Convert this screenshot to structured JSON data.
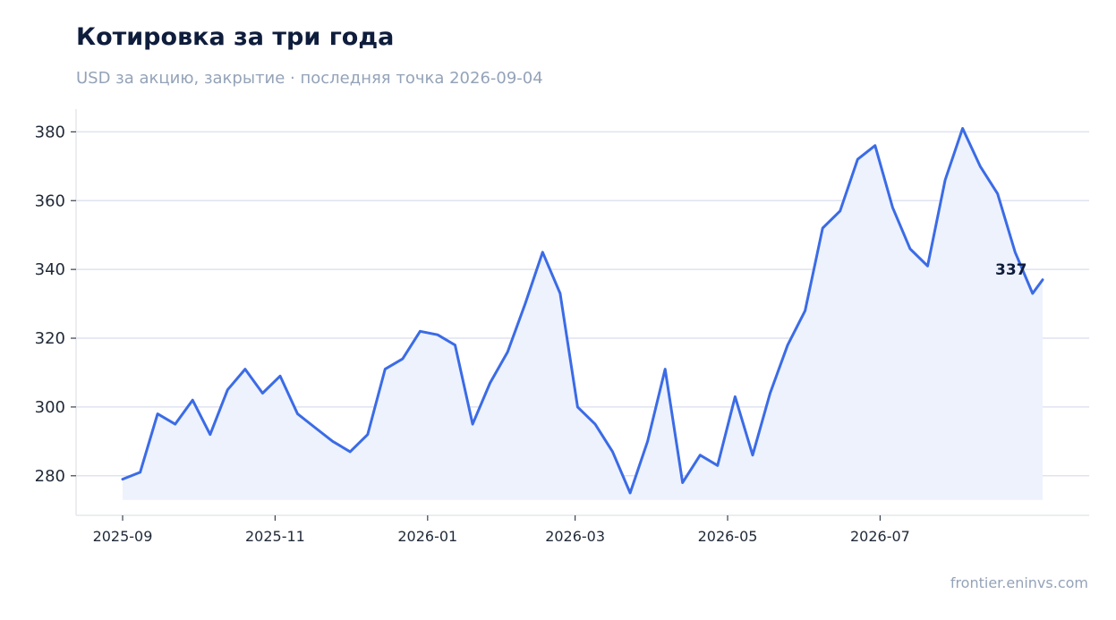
{
  "header": {
    "title": "Котировка за три года",
    "subtitle": "USD за акцию, закрытие · последняя точка 2026-09-04"
  },
  "footer": {
    "source": "frontier.eninvs.com"
  },
  "colors": {
    "line": "#3b6be6",
    "fill": "#edf2fd",
    "grid": "#dfe3f0",
    "axis": "#e5e7eb"
  },
  "chart_data": {
    "type": "area",
    "title": "Котировка за три года",
    "subtitle": "USD за акцию, закрытие · последняя точка 2026-09-04",
    "xlabel": "",
    "ylabel": "",
    "x_start": "2025-09-01",
    "x_end": "2026-09-04",
    "x_ticks": [
      "2025-09",
      "2025-11",
      "2026-01",
      "2026-03",
      "2026-05",
      "2026-07"
    ],
    "y_ticks": [
      280,
      300,
      320,
      340,
      360,
      380
    ],
    "ylim": [
      268.5,
      386.6
    ],
    "grid": true,
    "end_label": "337",
    "series": [
      {
        "x": [
          "2025-09-01",
          "2025-09-08",
          "2025-09-15",
          "2025-09-22",
          "2025-09-29",
          "2025-10-06",
          "2025-10-13",
          "2025-10-20",
          "2025-10-27",
          "2025-11-03",
          "2025-11-10",
          "2025-11-17",
          "2025-11-24",
          "2025-12-01",
          "2025-12-08",
          "2025-12-15",
          "2025-12-22",
          "2025-12-29",
          "2026-01-05",
          "2026-01-12",
          "2026-01-19",
          "2026-01-26",
          "2026-02-02",
          "2026-02-09",
          "2026-02-16",
          "2026-02-23",
          "2026-03-02",
          "2026-03-09",
          "2026-03-16",
          "2026-03-23",
          "2026-03-30",
          "2026-04-06",
          "2026-04-13",
          "2026-04-20",
          "2026-04-27",
          "2026-05-04",
          "2026-05-11",
          "2026-05-18",
          "2026-05-25",
          "2026-06-01",
          "2026-06-08",
          "2026-06-15",
          "2026-06-22",
          "2026-06-29",
          "2026-07-06",
          "2026-07-13",
          "2026-07-20",
          "2026-07-27",
          "2026-08-03",
          "2026-08-10",
          "2026-08-17",
          "2026-08-24",
          "2026-08-31",
          "2026-09-04"
        ],
        "values": [
          279,
          281,
          298,
          295,
          302,
          292,
          305,
          311,
          304,
          309,
          298,
          294,
          290,
          287,
          292,
          311,
          314,
          322,
          321,
          318,
          295,
          307,
          316,
          330,
          345,
          333,
          300,
          295,
          287,
          275,
          290,
          311,
          278,
          286,
          283,
          303,
          286,
          304,
          318,
          328,
          352,
          357,
          372,
          376,
          358,
          346,
          341,
          366,
          381,
          370,
          362,
          345,
          333,
          337
        ]
      }
    ]
  }
}
